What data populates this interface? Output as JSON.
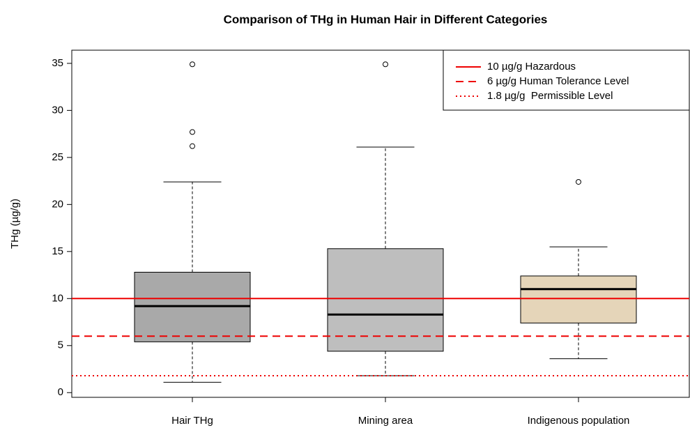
{
  "chart_data": {
    "type": "box",
    "title": "Comparison of THg in Human Hair in Different Categories",
    "y_label": "THg (µg/g)",
    "categories": [
      "Hair THg",
      "Mining area",
      "Indigenous population"
    ],
    "boxes": [
      {
        "min": 1.1,
        "q1": 5.4,
        "median": 9.2,
        "q3": 12.8,
        "max": 22.4,
        "outliers": [
          26.2,
          27.7,
          34.9
        ],
        "color": "#a9a9a9"
      },
      {
        "min": 1.8,
        "q1": 4.4,
        "median": 8.3,
        "q3": 15.3,
        "max": 26.1,
        "outliers": [
          34.9
        ],
        "color": "#bebebe"
      },
      {
        "min": 3.6,
        "q1": 7.4,
        "median": 11.0,
        "q3": 12.4,
        "max": 15.5,
        "outliers": [
          22.4
        ],
        "color": "#e5d5b9"
      }
    ],
    "hlines": [
      {
        "value": 10,
        "label": "10 µg/g Hazardous",
        "style": "solid",
        "color": "#ee0000"
      },
      {
        "value": 6,
        "label": "6 µg/g Human Tolerance Level",
        "style": "dashed",
        "color": "#ee0000"
      },
      {
        "value": 1.8,
        "label": "1.8 µg/g  Permissible Level",
        "style": "dotted",
        "color": "#ee0000"
      }
    ],
    "ylim": [
      -0.5,
      36.4
    ],
    "yticks": [
      0,
      5,
      10,
      15,
      20,
      25,
      30,
      35
    ],
    "legend": "top-right"
  }
}
